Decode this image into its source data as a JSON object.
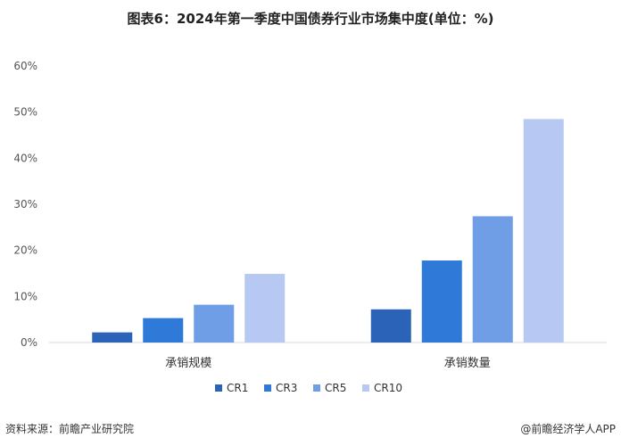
{
  "title": "图表6：2024年第一季度中国债券行业市场集中度(单位：%)",
  "source": "资料来源：前瞻产业研究院",
  "brand": "@前瞻经济学人APP",
  "chart_data": {
    "type": "bar",
    "categories": [
      "承销规模",
      "承销数量"
    ],
    "series": [
      {
        "name": "CR1",
        "color": "#2b63b8",
        "values": [
          2.2,
          7.2
        ]
      },
      {
        "name": "CR3",
        "color": "#2f7ad8",
        "values": [
          5.3,
          17.8
        ]
      },
      {
        "name": "CR5",
        "color": "#6f9ee6",
        "values": [
          8.2,
          27.4
        ]
      },
      {
        "name": "CR10",
        "color": "#b7c9f2",
        "values": [
          14.9,
          48.5
        ]
      }
    ],
    "ylim": [
      0,
      60
    ],
    "yticks": [
      "0%",
      "10%",
      "20%",
      "30%",
      "40%",
      "50%",
      "60%"
    ],
    "grid": false,
    "legend": "bottom"
  }
}
